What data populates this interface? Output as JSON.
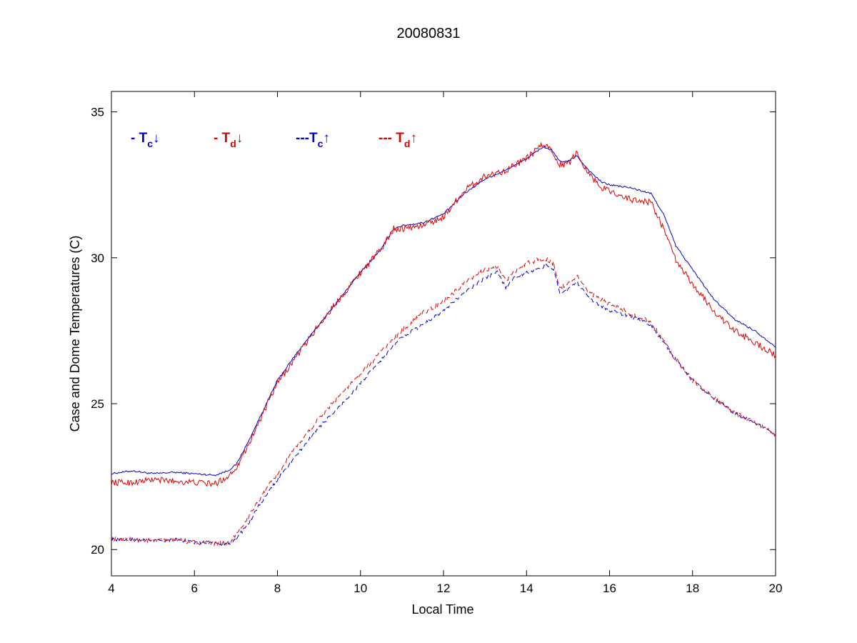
{
  "chart_data": {
    "type": "line",
    "title": "20080831",
    "xlabel": "Local Time",
    "ylabel": "Case and Dome Temperatures (C)",
    "xlim": [
      4,
      20
    ],
    "ylim": [
      19.1,
      35.7
    ],
    "xticks": [
      4,
      6,
      8,
      10,
      12,
      14,
      16,
      18,
      20
    ],
    "yticks": [
      20,
      25,
      30,
      35
    ],
    "grid": false,
    "legend_position": "top-left inside",
    "colors": {
      "blue": "#0000cc",
      "red": "#dd0000"
    },
    "legend": [
      {
        "prefix": "- T",
        "sub": "c",
        "arrow": "↓",
        "color": "#0000cc"
      },
      {
        "prefix": "- T",
        "sub": "d",
        "arrow": "↓",
        "color": "#dd0000"
      },
      {
        "prefix": "---T",
        "sub": "c",
        "arrow": "↑",
        "color": "#0000cc"
      },
      {
        "prefix": "--- T",
        "sub": "d",
        "arrow": "↑",
        "color": "#dd0000"
      }
    ],
    "series": [
      {
        "color": "#0000cc",
        "dashed": false,
        "noise": 0.03,
        "x": [
          4,
          4.5,
          5,
          5.5,
          6,
          6.5,
          6.8,
          7,
          7.3,
          7.6,
          8,
          8.5,
          9,
          9.5,
          10,
          10.5,
          10.8,
          11,
          11.5,
          12,
          12.5,
          13,
          13.5,
          14,
          14.4,
          14.6,
          14.8,
          15,
          15.2,
          15.5,
          15.8,
          16,
          16.5,
          17,
          17.3,
          17.6,
          18,
          18.5,
          19,
          19.5,
          20
        ],
        "y": [
          22.6,
          22.7,
          22.6,
          22.65,
          22.6,
          22.55,
          22.7,
          22.9,
          23.7,
          24.6,
          25.8,
          26.8,
          27.7,
          28.6,
          29.5,
          30.3,
          31.0,
          31.1,
          31.2,
          31.5,
          32.2,
          32.7,
          33.0,
          33.4,
          33.8,
          33.7,
          33.3,
          33.3,
          33.5,
          33.0,
          32.6,
          32.5,
          32.4,
          32.2,
          31.5,
          30.4,
          29.6,
          28.6,
          27.9,
          27.5,
          26.95
        ]
      },
      {
        "color": "#dd0000",
        "dashed": false,
        "noise": 0.11,
        "x": [
          4,
          4.5,
          5,
          5.5,
          6,
          6.5,
          6.8,
          7,
          7.3,
          7.6,
          8,
          8.5,
          9,
          9.5,
          10,
          10.5,
          10.8,
          11,
          11.5,
          12,
          12.5,
          13,
          13.5,
          14,
          14.4,
          14.6,
          14.8,
          15,
          15.2,
          15.5,
          15.8,
          16,
          16.5,
          17,
          17.3,
          17.6,
          18,
          18.5,
          19,
          19.5,
          20
        ],
        "y": [
          22.3,
          22.3,
          22.4,
          22.35,
          22.3,
          22.25,
          22.5,
          22.8,
          23.6,
          24.5,
          25.7,
          26.7,
          27.7,
          28.6,
          29.5,
          30.3,
          31.0,
          31.0,
          31.1,
          31.4,
          32.3,
          32.8,
          33.0,
          33.4,
          33.9,
          33.7,
          33.2,
          33.2,
          33.6,
          32.9,
          32.4,
          32.3,
          32.0,
          31.9,
          31.0,
          29.9,
          29.1,
          28.2,
          27.5,
          27.1,
          26.65
        ]
      },
      {
        "color": "#0000cc",
        "dashed": true,
        "noise": 0.06,
        "x": [
          4,
          4.5,
          5,
          5.5,
          6,
          6.5,
          6.8,
          7,
          7.3,
          7.6,
          8,
          8.5,
          9,
          9.5,
          10,
          10.5,
          11,
          11.5,
          12,
          12.5,
          13,
          13.3,
          13.5,
          13.7,
          14,
          14.3,
          14.5,
          14.65,
          14.8,
          15,
          15.2,
          15.5,
          16,
          16.5,
          17,
          17.5,
          18,
          18.5,
          19,
          19.5,
          20
        ],
        "y": [
          20.35,
          20.35,
          20.3,
          20.35,
          20.25,
          20.2,
          20.2,
          20.35,
          20.9,
          21.6,
          22.4,
          23.3,
          24.2,
          24.9,
          25.7,
          26.5,
          27.3,
          27.7,
          28.2,
          28.8,
          29.3,
          29.5,
          29.0,
          29.3,
          29.5,
          29.6,
          29.75,
          29.6,
          28.8,
          28.9,
          29.2,
          28.6,
          28.2,
          28.0,
          27.7,
          26.7,
          25.8,
          25.2,
          24.7,
          24.35,
          23.95
        ]
      },
      {
        "color": "#dd0000",
        "dashed": true,
        "noise": 0.08,
        "x": [
          4,
          4.5,
          5,
          5.5,
          6,
          6.5,
          6.8,
          7,
          7.3,
          7.6,
          8,
          8.5,
          9,
          9.5,
          10,
          10.5,
          11,
          11.5,
          12,
          12.5,
          13,
          13.3,
          13.5,
          13.7,
          14,
          14.3,
          14.5,
          14.65,
          14.8,
          15,
          15.2,
          15.5,
          16,
          16.5,
          17,
          17.5,
          18,
          18.5,
          19,
          19.5,
          20
        ],
        "y": [
          20.35,
          20.35,
          20.3,
          20.35,
          20.25,
          20.2,
          20.2,
          20.5,
          21.1,
          21.8,
          22.6,
          23.6,
          24.5,
          25.3,
          26.0,
          26.8,
          27.5,
          28.1,
          28.5,
          29.1,
          29.6,
          29.7,
          29.2,
          29.5,
          29.8,
          29.95,
          29.95,
          29.8,
          29.0,
          29.1,
          29.4,
          28.8,
          28.4,
          28.1,
          27.8,
          26.7,
          25.8,
          25.2,
          24.7,
          24.35,
          23.95
        ]
      }
    ]
  }
}
